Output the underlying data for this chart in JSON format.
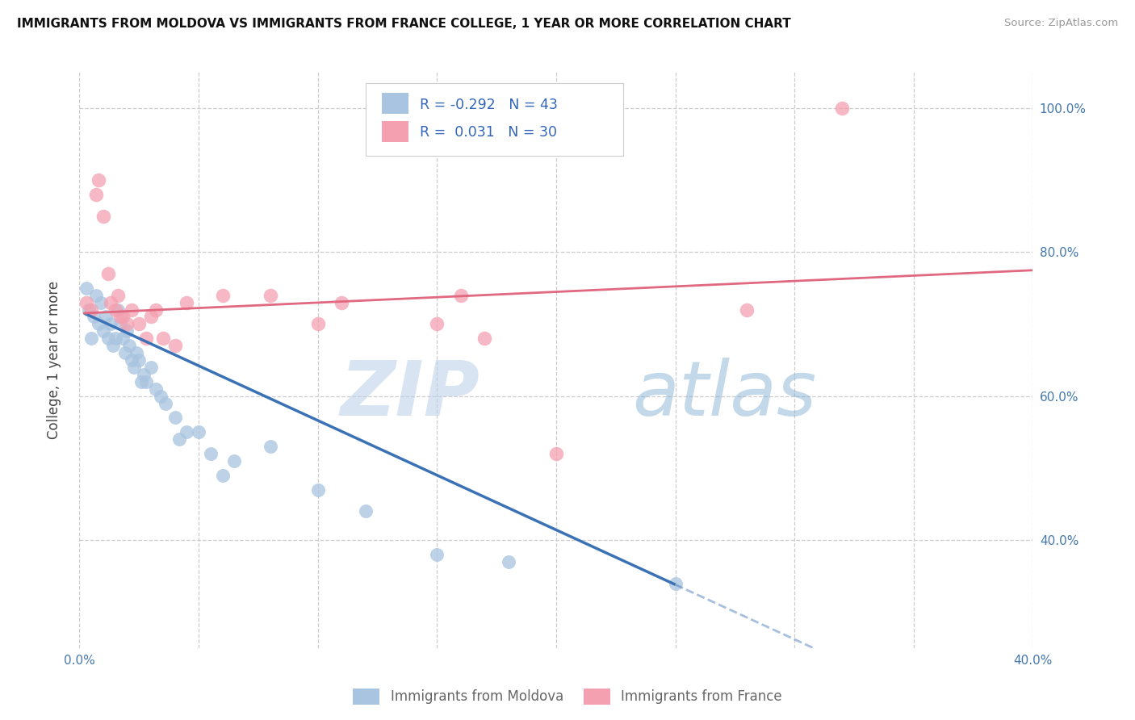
{
  "title": "IMMIGRANTS FROM MOLDOVA VS IMMIGRANTS FROM FRANCE COLLEGE, 1 YEAR OR MORE CORRELATION CHART",
  "source": "Source: ZipAtlas.com",
  "ylabel": "College, 1 year or more",
  "xlim": [
    0.0,
    0.4
  ],
  "ylim": [
    0.25,
    1.05
  ],
  "xticks": [
    0.0,
    0.05,
    0.1,
    0.15,
    0.2,
    0.25,
    0.3,
    0.35,
    0.4
  ],
  "xticklabels": [
    "0.0%",
    "",
    "",
    "",
    "",
    "",
    "",
    "",
    "40.0%"
  ],
  "yticks_right": [
    0.4,
    0.6,
    0.8,
    1.0
  ],
  "yticklabels_right": [
    "40.0%",
    "60.0%",
    "80.0%",
    "100.0%"
  ],
  "legend_r_moldova": "-0.292",
  "legend_n_moldova": "43",
  "legend_r_france": "0.031",
  "legend_n_france": "30",
  "moldova_color": "#a8c4e0",
  "france_color": "#f4a0b0",
  "moldova_line_color": "#3a72b5",
  "france_line_color": "#e06880",
  "watermark_zip": "ZIP",
  "watermark_atlas": "atlas",
  "moldova_scatter_x": [
    0.003,
    0.004,
    0.005,
    0.006,
    0.007,
    0.008,
    0.009,
    0.01,
    0.011,
    0.012,
    0.013,
    0.014,
    0.015,
    0.016,
    0.017,
    0.018,
    0.019,
    0.02,
    0.021,
    0.022,
    0.023,
    0.024,
    0.025,
    0.026,
    0.027,
    0.028,
    0.03,
    0.032,
    0.034,
    0.036,
    0.04,
    0.042,
    0.045,
    0.05,
    0.055,
    0.06,
    0.065,
    0.08,
    0.1,
    0.12,
    0.15,
    0.18,
    0.25
  ],
  "moldova_scatter_y": [
    0.75,
    0.72,
    0.68,
    0.71,
    0.74,
    0.7,
    0.73,
    0.69,
    0.71,
    0.68,
    0.7,
    0.67,
    0.68,
    0.72,
    0.7,
    0.68,
    0.66,
    0.69,
    0.67,
    0.65,
    0.64,
    0.66,
    0.65,
    0.62,
    0.63,
    0.62,
    0.64,
    0.61,
    0.6,
    0.59,
    0.57,
    0.54,
    0.55,
    0.55,
    0.52,
    0.49,
    0.51,
    0.53,
    0.47,
    0.44,
    0.38,
    0.37,
    0.34
  ],
  "france_scatter_x": [
    0.003,
    0.005,
    0.007,
    0.008,
    0.01,
    0.012,
    0.013,
    0.015,
    0.016,
    0.017,
    0.018,
    0.02,
    0.022,
    0.025,
    0.028,
    0.03,
    0.032,
    0.035,
    0.04,
    0.045,
    0.06,
    0.08,
    0.1,
    0.11,
    0.15,
    0.16,
    0.17,
    0.2,
    0.28,
    0.32
  ],
  "france_scatter_y": [
    0.73,
    0.72,
    0.88,
    0.9,
    0.85,
    0.77,
    0.73,
    0.72,
    0.74,
    0.71,
    0.71,
    0.7,
    0.72,
    0.7,
    0.68,
    0.71,
    0.72,
    0.68,
    0.67,
    0.73,
    0.74,
    0.74,
    0.7,
    0.73,
    0.7,
    0.74,
    0.68,
    0.52,
    0.72,
    1.0
  ],
  "moldova_trend_x0": 0.002,
  "moldova_trend_x_solid_end": 0.25,
  "moldova_trend_x_dash_end": 0.4,
  "moldova_trend_y0": 0.715,
  "moldova_trend_slope": -1.52,
  "france_trend_x0": 0.002,
  "france_trend_x_end": 0.4,
  "france_trend_y0": 0.715,
  "france_trend_slope": 0.15
}
